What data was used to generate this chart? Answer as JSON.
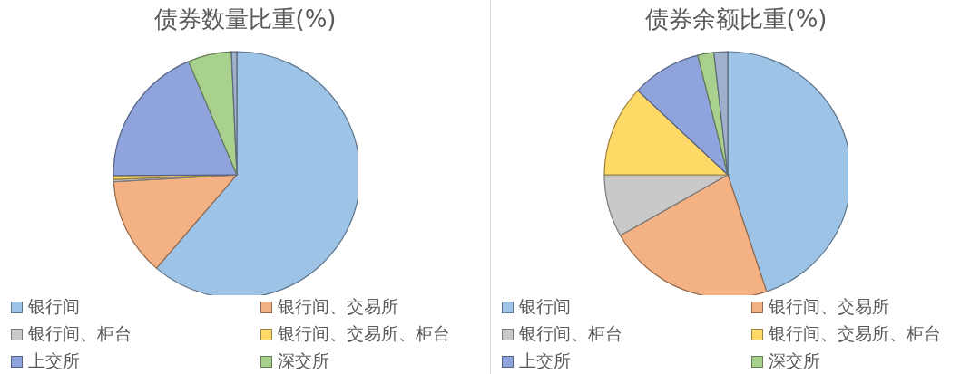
{
  "chart_data": [
    {
      "type": "pie",
      "title": "债券数量比重(%)",
      "categories": [
        "银行间",
        "银行间、交易所",
        "银行间、柜台",
        "银行间、交易所、柜台",
        "上交所",
        "深交所",
        null
      ],
      "values": [
        61.3,
        12.8,
        0.3,
        0.5,
        18.7,
        5.7,
        0.7
      ],
      "colors": [
        "#9dc3e6",
        "#f4b183",
        "#c9c9c9",
        "#ffd966",
        "#8fa3dc",
        "#a9d18e",
        "#9fb0cc"
      ],
      "legend": "bottom"
    },
    {
      "type": "pie",
      "title": "债券余额比重(%)",
      "categories": [
        "银行间",
        "银行间、交易所",
        "银行间、柜台",
        "银行间、交易所、柜台",
        "上交所",
        "深交所",
        null
      ],
      "values": [
        44.9,
        21.9,
        8.2,
        12.0,
        9.1,
        2.1,
        1.8
      ],
      "colors": [
        "#9dc3e6",
        "#f4b183",
        "#c9c9c9",
        "#ffd966",
        "#8fa3dc",
        "#a9d18e",
        "#9fb0cc"
      ],
      "legend": "bottom"
    }
  ]
}
